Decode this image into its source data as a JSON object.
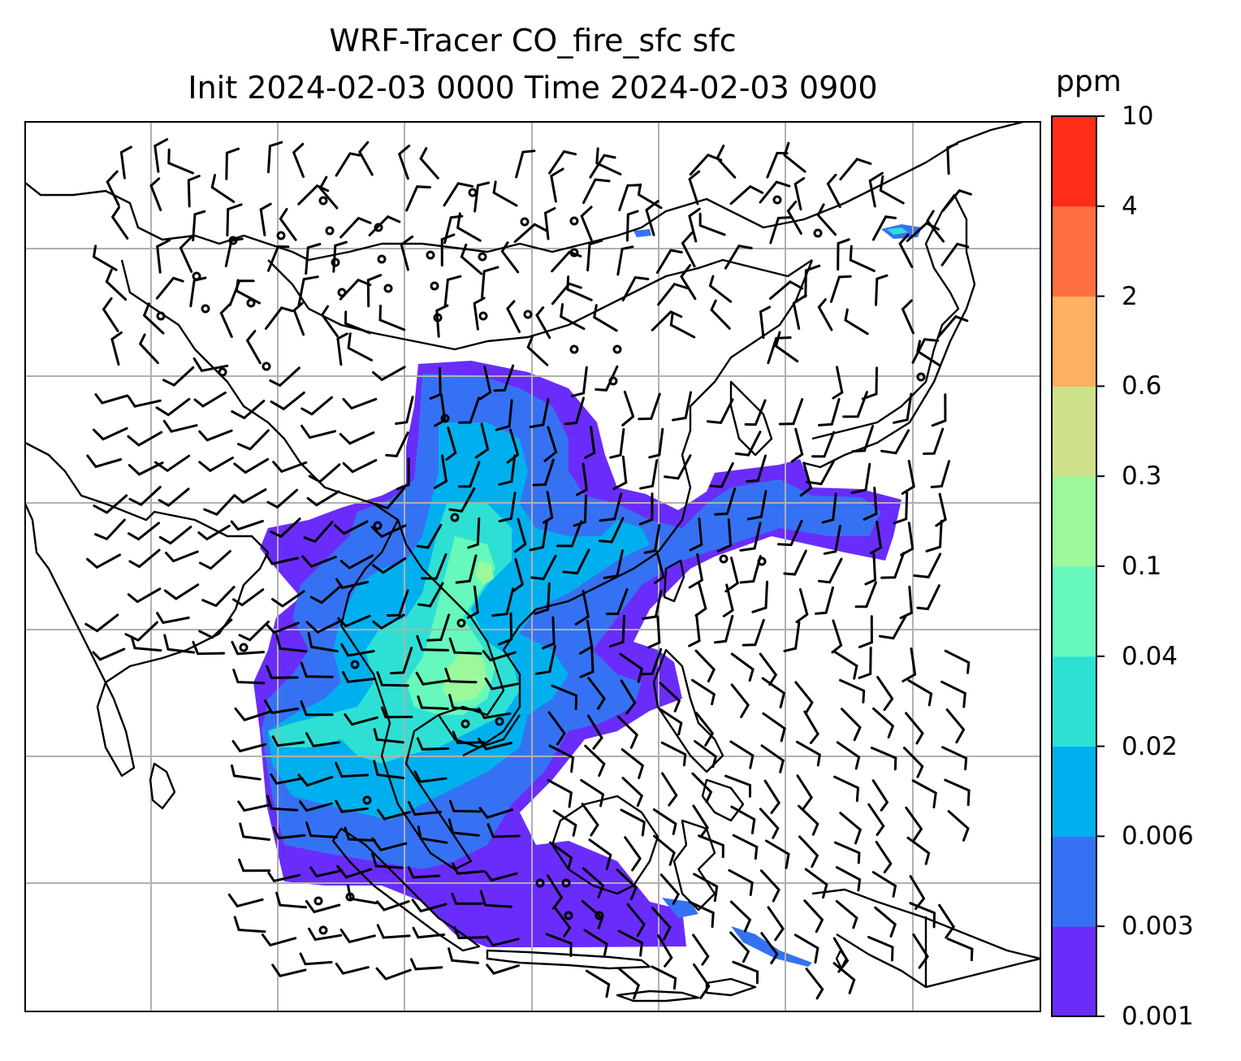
{
  "title": {
    "line1": "WRF-Tracer CO_fire_sfc sfc",
    "line2": "Init 2024-02-03 0000 Time 2024-02-03 0900"
  },
  "colorbar": {
    "unit": "ppm",
    "levels": [
      "0.001",
      "0.003",
      "0.006",
      "0.02",
      "0.04",
      "0.1",
      "0.3",
      "0.6",
      "2",
      "4",
      "10"
    ],
    "colors": [
      "#6a2cfb",
      "#3572f3",
      "#00b0ee",
      "#2ee0d4",
      "#66f8bc",
      "#9bf99c",
      "#cde08a",
      "#feb063",
      "#fe7040",
      "#fe2d18"
    ]
  },
  "map": {
    "background": "#ffffff",
    "gridline_color": "#b0b0b0",
    "coastline_color": "#000000",
    "wind_barb_color": "#000000",
    "calm_marker": "circle",
    "grid": true
  }
}
